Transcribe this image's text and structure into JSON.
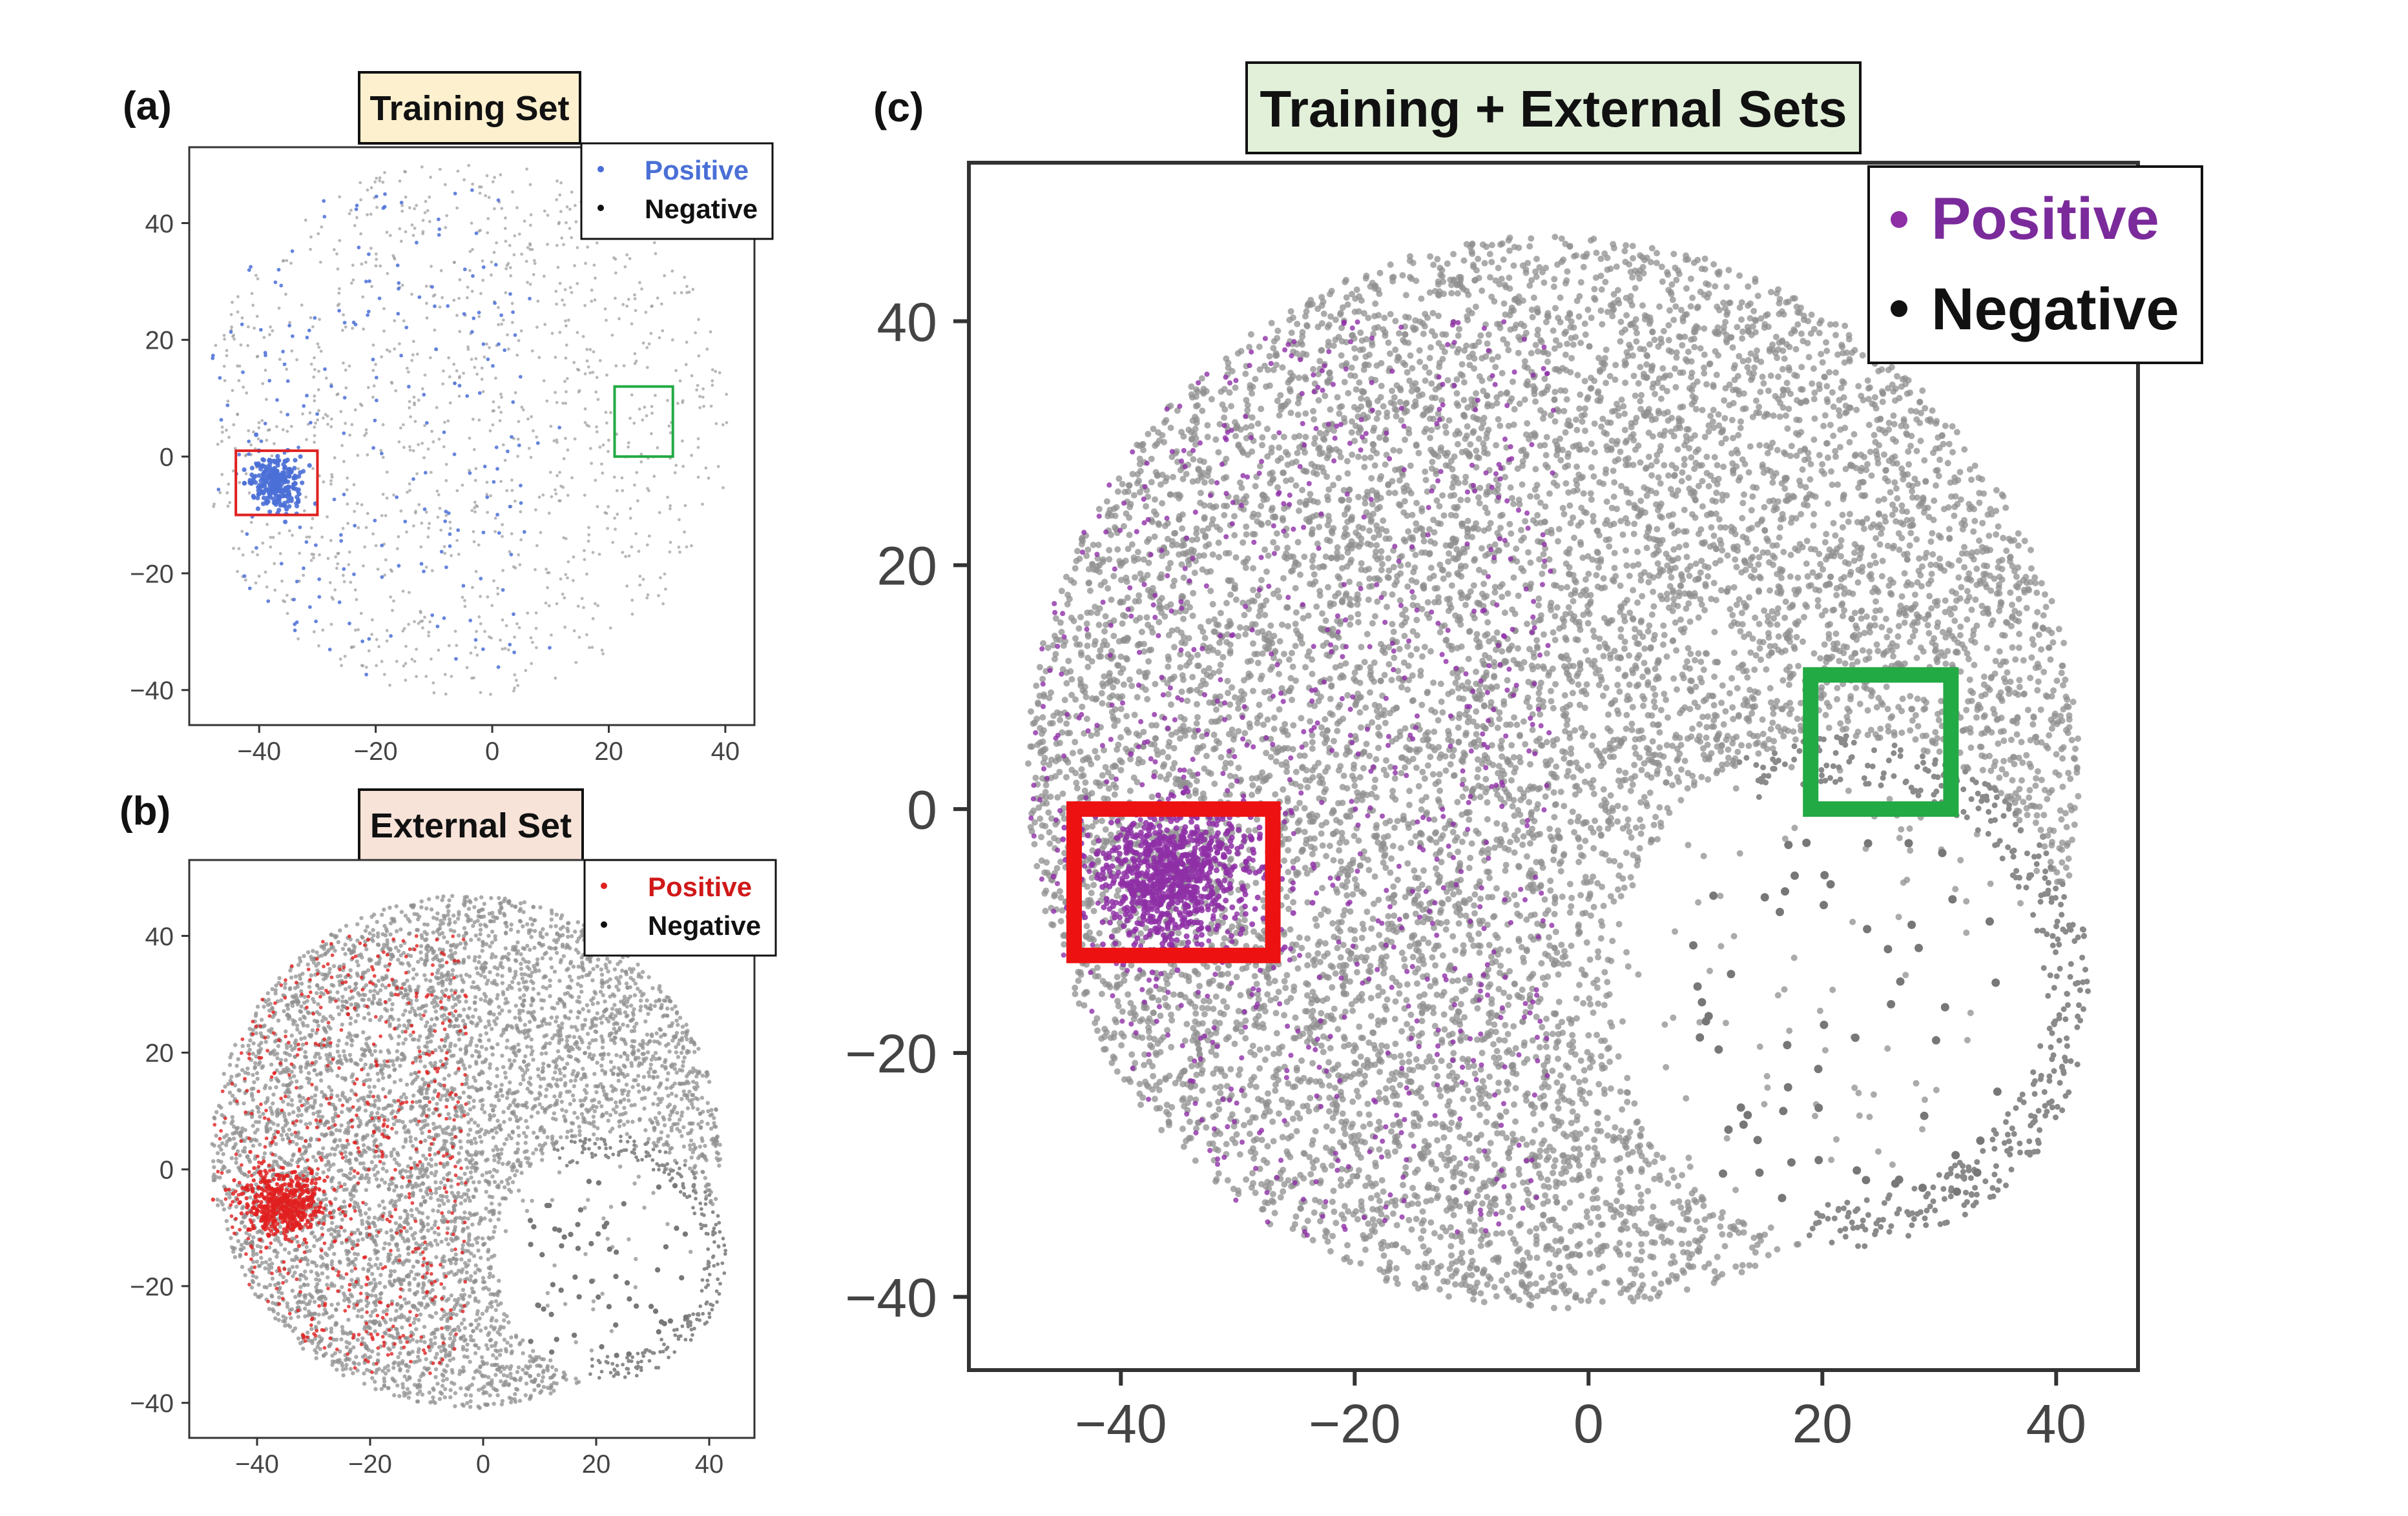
{
  "chart_data": [
    {
      "panel_label": "(a)",
      "type": "scatter",
      "title": "Training Set",
      "xlabel": "",
      "ylabel": "",
      "xlim": [
        -52,
        45
      ],
      "ylim": [
        -46,
        53
      ],
      "xticks": [
        -40,
        -20,
        0,
        20,
        40
      ],
      "yticks": [
        40,
        20,
        0,
        -20,
        -40
      ],
      "xtick_labels": [
        "−40",
        "−20",
        "0",
        "20",
        "40"
      ],
      "ytick_labels": [
        "40",
        "20",
        "0",
        "−20",
        "−40"
      ],
      "grid": false,
      "legend_position": "top-right",
      "series": [
        {
          "name": "Positive",
          "color": "#4a6fd6",
          "description": "dense cluster near (-37,-5) plus scattered points on left half"
        },
        {
          "name": "Negative",
          "color": "#111111",
          "description": "sparse grey points across full range"
        }
      ],
      "highlight_boxes": [
        {
          "color": "#e02020",
          "x_range": [
            -44,
            -30
          ],
          "y_range": [
            -10,
            1
          ]
        },
        {
          "color": "#22aa44",
          "x_range": [
            21,
            31
          ],
          "y_range": [
            0,
            12
          ]
        }
      ]
    },
    {
      "panel_label": "(b)",
      "type": "scatter",
      "title": "External Set",
      "xlabel": "",
      "ylabel": "",
      "xlim": [
        -52,
        48
      ],
      "ylim": [
        -46,
        53
      ],
      "xticks": [
        -40,
        -20,
        0,
        20,
        40
      ],
      "yticks": [
        40,
        20,
        0,
        -20,
        -40
      ],
      "xtick_labels": [
        "−40",
        "−20",
        "0",
        "20",
        "40"
      ],
      "ytick_labels": [
        "40",
        "20",
        "0",
        "−20",
        "−40"
      ],
      "grid": false,
      "legend_position": "top-right",
      "series": [
        {
          "name": "Positive",
          "color": "#e02020",
          "description": "dense cluster near (-36,-5) plus scattered points on left side"
        },
        {
          "name": "Negative",
          "color": "#111111",
          "description": "dense grey disc of points, sparse lower-right region"
        }
      ]
    },
    {
      "panel_label": "(c)",
      "type": "scatter",
      "title": "Training + External Sets",
      "xlabel": "",
      "ylabel": "",
      "xlim": [
        -53,
        47
      ],
      "ylim": [
        -46,
        53
      ],
      "xticks": [
        -40,
        -20,
        0,
        20,
        40
      ],
      "yticks": [
        40,
        20,
        0,
        -20,
        -40
      ],
      "xtick_labels": [
        "−40",
        "−20",
        "0",
        "20",
        "40"
      ],
      "ytick_labels": [
        "40",
        "20",
        "0",
        "−20",
        "−40"
      ],
      "grid": false,
      "legend_position": "top-right",
      "series": [
        {
          "name": "Positive",
          "color": "#8e2fa6",
          "description": "dense cluster near (-35,-5) plus scattered points on left side"
        },
        {
          "name": "Negative",
          "color": "#111111",
          "description": "dense grey disc of points, sparse lower-right region"
        }
      ],
      "highlight_boxes": [
        {
          "color": "#ee1111",
          "x_range": [
            -44,
            -27
          ],
          "y_range": [
            -12,
            0
          ]
        },
        {
          "color": "#22aa44",
          "x_range": [
            19,
            31
          ],
          "y_range": [
            0,
            11
          ]
        }
      ]
    }
  ]
}
